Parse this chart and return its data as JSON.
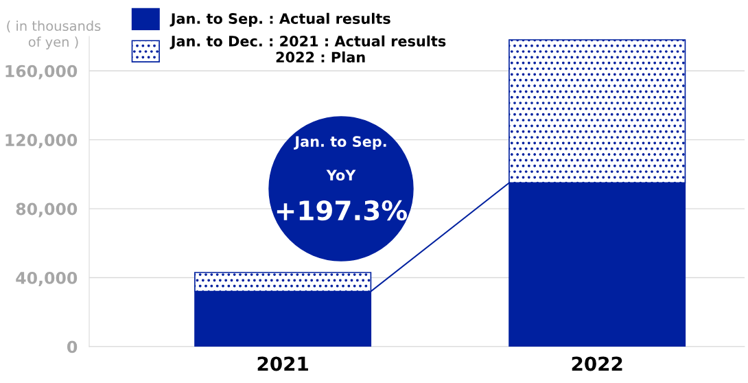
{
  "chart_data": {
    "type": "bar",
    "stacked": true,
    "ylabel": "( in thousands\nof yen )",
    "categories": [
      "2021",
      "2022"
    ],
    "series": [
      {
        "name": "Jan. to Sep. : Actual results",
        "color": "#00209f",
        "values": [
          32000,
          95000
        ]
      },
      {
        "name": "Jan. to Dec. : 2021 : Actual results\n                     2022 : Plan",
        "color": "#00209f",
        "values": [
          11000,
          83000
        ]
      }
    ],
    "ylim": [
      0,
      180000
    ],
    "yticks": [
      {
        "value": 0,
        "label": "0"
      },
      {
        "value": 40000,
        "label": "40,000"
      },
      {
        "value": 80000,
        "label": "80,000"
      },
      {
        "value": 120000,
        "label": "120,000"
      },
      {
        "value": 160000,
        "label": "160,000"
      }
    ],
    "grid": "y",
    "legend": "top left",
    "annotations": [
      "Jan. to Sep.",
      "YoY",
      "+197.3%"
    ]
  }
}
